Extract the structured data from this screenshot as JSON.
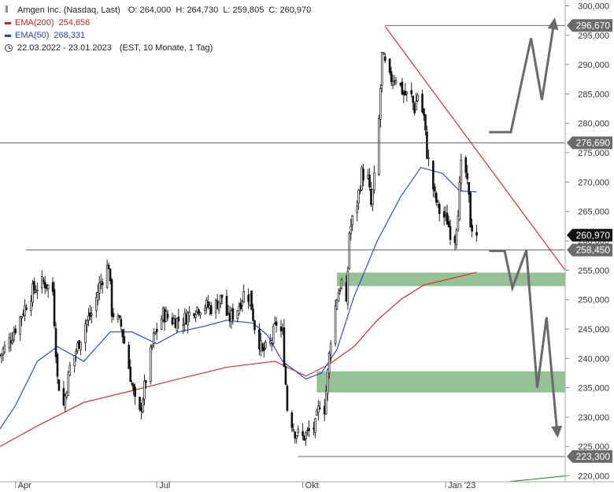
{
  "legend": {
    "instrument_label": "Amgen Inc. (Nasdaq, Last)",
    "ohlc": "O: 264,000  H: 264,730  L: 259,805  C: 260,970",
    "ema200_label": "EMA(200)",
    "ema200_value": "254,656",
    "ema50_label": "EMA(50)",
    "ema50_value": "268,331",
    "period": "22.03.2022 - 23.01.2023",
    "period_note": "(EST, 10 Monate, 1 Tag)",
    "colors": {
      "ema200": "#d62020",
      "ema50": "#2040d0"
    }
  },
  "chart_data": {
    "type": "candlestick",
    "ylim": [
      219000,
      301000
    ],
    "y_ticks": [
      220000,
      225000,
      230000,
      235000,
      240000,
      245000,
      250000,
      255000,
      260000,
      265000,
      270000,
      275000,
      280000,
      285000,
      290000,
      295000,
      300000
    ],
    "y_tick_labels": [
      "220,000",
      "225,000",
      "230,000",
      "235,000",
      "240,000",
      "245,000",
      "250,000",
      "255,000",
      "260,000",
      "265,000",
      "270,000",
      "275,000",
      "280,000",
      "285,000",
      "290,000",
      "295,000",
      "300,000"
    ],
    "x_range": [
      "2022-03-22",
      "2023-03-21"
    ],
    "x_labels": [
      {
        "text": "Apr",
        "date": "2022-04-01"
      },
      {
        "text": "Jul",
        "date": "2022-07-01"
      },
      {
        "text": "Okt",
        "date": "2022-10-03"
      },
      {
        "text": "Jan '23",
        "date": "2023-01-03"
      }
    ],
    "close_anchors": [
      [
        "2022-03-22",
        240500
      ],
      [
        "2022-03-29",
        243500
      ],
      [
        "2022-04-05",
        247500
      ],
      [
        "2022-04-12",
        251500
      ],
      [
        "2022-04-19",
        253000
      ],
      [
        "2022-04-25",
        251500
      ],
      [
        "2022-04-28",
        236500
      ],
      [
        "2022-05-02",
        232000
      ],
      [
        "2022-05-06",
        238500
      ],
      [
        "2022-05-11",
        242000
      ],
      [
        "2022-05-16",
        246000
      ],
      [
        "2022-05-21",
        248000
      ],
      [
        "2022-05-25",
        252500
      ],
      [
        "2022-05-31",
        256000
      ],
      [
        "2022-06-02",
        248000
      ],
      [
        "2022-06-08",
        245500
      ],
      [
        "2022-06-13",
        238500
      ],
      [
        "2022-06-17",
        232500
      ],
      [
        "2022-06-20",
        230500
      ],
      [
        "2022-06-24",
        236500
      ],
      [
        "2022-06-29",
        243500
      ],
      [
        "2022-07-05",
        247500
      ],
      [
        "2022-07-11",
        246500
      ],
      [
        "2022-07-18",
        246500
      ],
      [
        "2022-07-25",
        248500
      ],
      [
        "2022-08-01",
        249000
      ],
      [
        "2022-08-06",
        248500
      ],
      [
        "2022-08-12",
        250500
      ],
      [
        "2022-08-16",
        246500
      ],
      [
        "2022-08-22",
        248500
      ],
      [
        "2022-08-26",
        251000
      ],
      [
        "2022-08-30",
        250500
      ],
      [
        "2022-09-02",
        245500
      ],
      [
        "2022-09-07",
        241000
      ],
      [
        "2022-09-12",
        242500
      ],
      [
        "2022-09-16",
        246000
      ],
      [
        "2022-09-20",
        244000
      ],
      [
        "2022-09-23",
        231500
      ],
      [
        "2022-09-28",
        227500
      ],
      [
        "2022-10-03",
        226500
      ],
      [
        "2022-10-07",
        227500
      ],
      [
        "2022-10-11",
        228500
      ],
      [
        "2022-10-14",
        232500
      ],
      [
        "2022-10-17",
        231500
      ],
      [
        "2022-10-21",
        243500
      ],
      [
        "2022-10-25",
        250500
      ],
      [
        "2022-10-28",
        253000
      ],
      [
        "2022-10-31",
        248500
      ],
      [
        "2022-11-02",
        261500
      ],
      [
        "2022-11-07",
        266500
      ],
      [
        "2022-11-10",
        271500
      ],
      [
        "2022-11-14",
        270500
      ],
      [
        "2022-11-16",
        266000
      ],
      [
        "2022-11-20",
        275000
      ],
      [
        "2022-11-23",
        291500
      ],
      [
        "2022-11-28",
        287500
      ],
      [
        "2022-12-02",
        288000
      ],
      [
        "2022-12-07",
        285000
      ],
      [
        "2022-12-12",
        284500
      ],
      [
        "2022-12-14",
        282500
      ],
      [
        "2022-12-16",
        285000
      ],
      [
        "2022-12-20",
        281000
      ],
      [
        "2022-12-22",
        275000
      ],
      [
        "2022-12-27",
        267500
      ],
      [
        "2022-12-30",
        265000
      ],
      [
        "2023-01-04",
        263500
      ],
      [
        "2023-01-06",
        261500
      ],
      [
        "2023-01-09",
        260500
      ],
      [
        "2023-01-11",
        265500
      ],
      [
        "2023-01-13",
        272500
      ],
      [
        "2023-01-16",
        271500
      ],
      [
        "2023-01-18",
        267000
      ],
      [
        "2023-01-19",
        263000
      ],
      [
        "2023-01-23",
        260970
      ]
    ],
    "ema50_anchors": [
      [
        "2022-03-22",
        228000
      ],
      [
        "2022-04-01",
        232000
      ],
      [
        "2022-04-15",
        239500
      ],
      [
        "2022-04-28",
        242000
      ],
      [
        "2022-05-15",
        239500
      ],
      [
        "2022-06-01",
        244500
      ],
      [
        "2022-06-15",
        244500
      ],
      [
        "2022-07-01",
        242500
      ],
      [
        "2022-07-15",
        244500
      ],
      [
        "2022-08-01",
        245500
      ],
      [
        "2022-08-15",
        246500
      ],
      [
        "2022-09-01",
        246000
      ],
      [
        "2022-09-10",
        244000
      ],
      [
        "2022-09-20",
        239500
      ],
      [
        "2022-10-05",
        236500
      ],
      [
        "2022-10-15",
        237500
      ],
      [
        "2022-10-25",
        241500
      ],
      [
        "2022-11-05",
        250500
      ],
      [
        "2022-11-20",
        260000
      ],
      [
        "2022-12-05",
        267500
      ],
      [
        "2022-12-18",
        272500
      ],
      [
        "2023-01-01",
        271500
      ],
      [
        "2023-01-12",
        268500
      ],
      [
        "2023-01-23",
        268331
      ]
    ],
    "ema200_anchors": [
      [
        "2022-03-22",
        225000
      ],
      [
        "2022-04-15",
        228500
      ],
      [
        "2022-05-15",
        232500
      ],
      [
        "2022-06-15",
        234500
      ],
      [
        "2022-07-15",
        236500
      ],
      [
        "2022-08-15",
        238500
      ],
      [
        "2022-09-15",
        239500
      ],
      [
        "2022-10-05",
        237000
      ],
      [
        "2022-10-20",
        239000
      ],
      [
        "2022-11-05",
        242000
      ],
      [
        "2022-11-20",
        246500
      ],
      [
        "2022-12-05",
        250000
      ],
      [
        "2022-12-20",
        252500
      ],
      [
        "2023-01-05",
        253500
      ],
      [
        "2023-01-23",
        254656
      ]
    ],
    "horizontal_levels": [
      {
        "value": 296670,
        "label": "296,670",
        "from": "2022-11-25"
      },
      {
        "value": 276690,
        "label": "276,690",
        "from": "2022-03-22"
      },
      {
        "value": 258450,
        "label": "258,450",
        "from": "2022-04-08"
      },
      {
        "value": 223300,
        "label": "223,300",
        "from": "2022-09-30"
      }
    ],
    "last_price": {
      "value": 260970,
      "label": "260,970"
    },
    "zones": [
      {
        "from": "2022-10-25",
        "to": "2023-03-21",
        "low": 252300,
        "high": 254600
      },
      {
        "from": "2022-10-12",
        "to": "2023-03-21",
        "low": 234200,
        "high": 237800
      }
    ],
    "trendlines": [
      {
        "color": "#e02020",
        "points": [
          [
            "2022-11-25",
            296500
          ],
          [
            "2023-03-21",
            255000
          ]
        ]
      },
      {
        "color": "#2a8a2a",
        "points": [
          [
            "2023-02-12",
            219000
          ],
          [
            "2023-03-21",
            220000
          ]
        ]
      }
    ],
    "scenario_paths": [
      {
        "points": [
          [
            "2023-01-31",
            278500
          ],
          [
            "2023-02-14",
            278500
          ],
          [
            "2023-02-27",
            294500
          ],
          [
            "2023-03-06",
            284000
          ],
          [
            "2023-03-14",
            297500
          ]
        ],
        "arrow": true
      },
      {
        "points": [
          [
            "2023-01-31",
            258300
          ],
          [
            "2023-02-10",
            258300
          ],
          [
            "2023-02-15",
            252000
          ],
          [
            "2023-02-24",
            258400
          ],
          [
            "2023-03-03",
            235000
          ],
          [
            "2023-03-09",
            247000
          ],
          [
            "2023-03-16",
            227000
          ]
        ],
        "arrow": true
      }
    ],
    "colors": {
      "candle": "#111111",
      "zone": "#8fbf8f",
      "hline": "#555555",
      "path": "#6a6a6a",
      "price_box": "#111111",
      "level_box": "#6b6b6b"
    }
  }
}
